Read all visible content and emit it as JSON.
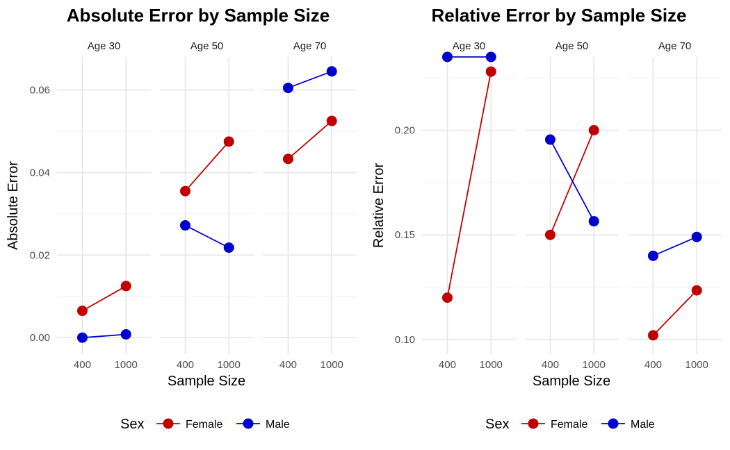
{
  "colors": {
    "Female": "#c00000",
    "Male": "#0000cc"
  },
  "legend": {
    "title": "Sex",
    "entries": [
      "Female",
      "Male"
    ]
  },
  "chart_data": [
    {
      "type": "line",
      "title": "Absolute Error by Sample Size",
      "xlabel": "Sample Size",
      "ylabel": "Absolute Error",
      "x_categories": [
        "400",
        "1000"
      ],
      "ylim": [
        -0.004,
        0.068
      ],
      "yticks": [
        0.0,
        0.02,
        0.04,
        0.06
      ],
      "ytick_labels": [
        "0.00",
        "0.02",
        "0.04",
        "0.06"
      ],
      "legend_position": "bottom",
      "facets": [
        {
          "label": "Age 30",
          "series": [
            {
              "name": "Female",
              "values": [
                0.0065,
                0.0125
              ]
            },
            {
              "name": "Male",
              "values": [
                0.0,
                0.0008
              ]
            }
          ]
        },
        {
          "label": "Age 50",
          "series": [
            {
              "name": "Female",
              "values": [
                0.0355,
                0.0475
              ]
            },
            {
              "name": "Male",
              "values": [
                0.0272,
                0.0218
              ]
            }
          ]
        },
        {
          "label": "Age 70",
          "series": [
            {
              "name": "Female",
              "values": [
                0.0433,
                0.0525
              ]
            },
            {
              "name": "Male",
              "values": [
                0.0605,
                0.0645
              ]
            }
          ]
        }
      ]
    },
    {
      "type": "line",
      "title": "Relative Error by Sample Size",
      "xlabel": "Sample Size",
      "ylabel": "Relative Error",
      "x_categories": [
        "400",
        "1000"
      ],
      "ylim": [
        0.093,
        0.235
      ],
      "yticks": [
        0.1,
        0.15,
        0.2
      ],
      "ytick_labels": [
        "0.10",
        "0.15",
        "0.20"
      ],
      "legend_position": "bottom",
      "facets": [
        {
          "label": "Age 30",
          "series": [
            {
              "name": "Female",
              "values": [
                0.12,
                0.228
              ]
            },
            {
              "name": "Male",
              "values": [
                0.235,
                0.235
              ]
            }
          ]
        },
        {
          "label": "Age 50",
          "series": [
            {
              "name": "Female",
              "values": [
                0.15,
                0.2
              ]
            },
            {
              "name": "Male",
              "values": [
                0.1955,
                0.1565
              ]
            }
          ]
        },
        {
          "label": "Age 70",
          "series": [
            {
              "name": "Female",
              "values": [
                0.102,
                0.1235
              ]
            },
            {
              "name": "Male",
              "values": [
                0.14,
                0.149
              ]
            }
          ]
        }
      ]
    }
  ]
}
